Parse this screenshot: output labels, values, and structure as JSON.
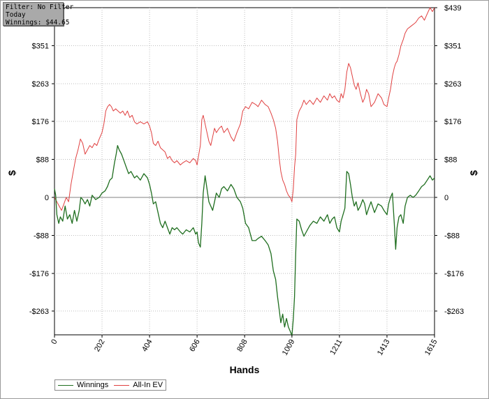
{
  "filter_box": {
    "line1": "Filter: No Filter",
    "line2": "Today",
    "line3": "Winnings: $44.65"
  },
  "chart_data": {
    "type": "line",
    "xlabel": "Hands",
    "ylabel": "$",
    "xlim": [
      0,
      1615
    ],
    "ylim": [
      -318,
      439
    ],
    "x_ticks": [
      0,
      202,
      404,
      606,
      808,
      1009,
      1211,
      1413,
      1615
    ],
    "y_ticks": [
      439,
      351,
      263,
      176,
      88,
      0,
      -88,
      -176,
      -263
    ],
    "y_tick_labels": [
      "$439",
      "$351",
      "$263",
      "$176",
      "$88",
      "0",
      "-$88",
      "-$176",
      "-$263"
    ],
    "grid": true,
    "legend_position": "bottom-left",
    "series": [
      {
        "name": "Winnings",
        "color": "#1f6e1f",
        "points": [
          [
            0,
            20
          ],
          [
            5,
            5
          ],
          [
            10,
            -40
          ],
          [
            18,
            -60
          ],
          [
            25,
            -45
          ],
          [
            35,
            -55
          ],
          [
            45,
            -20
          ],
          [
            55,
            -50
          ],
          [
            65,
            -40
          ],
          [
            75,
            -60
          ],
          [
            85,
            -30
          ],
          [
            95,
            -55
          ],
          [
            105,
            -30
          ],
          [
            112,
            0
          ],
          [
            120,
            -5
          ],
          [
            130,
            -15
          ],
          [
            140,
            -5
          ],
          [
            150,
            -20
          ],
          [
            160,
            5
          ],
          [
            175,
            -5
          ],
          [
            190,
            0
          ],
          [
            202,
            10
          ],
          [
            215,
            15
          ],
          [
            225,
            25
          ],
          [
            235,
            40
          ],
          [
            245,
            45
          ],
          [
            255,
            80
          ],
          [
            262,
            100
          ],
          [
            268,
            120
          ],
          [
            275,
            110
          ],
          [
            285,
            100
          ],
          [
            295,
            85
          ],
          [
            305,
            70
          ],
          [
            315,
            55
          ],
          [
            325,
            60
          ],
          [
            340,
            45
          ],
          [
            350,
            50
          ],
          [
            365,
            40
          ],
          [
            380,
            55
          ],
          [
            395,
            45
          ],
          [
            404,
            30
          ],
          [
            412,
            10
          ],
          [
            420,
            -15
          ],
          [
            430,
            -10
          ],
          [
            440,
            -35
          ],
          [
            450,
            -60
          ],
          [
            460,
            -70
          ],
          [
            470,
            -55
          ],
          [
            480,
            -70
          ],
          [
            490,
            -85
          ],
          [
            500,
            -70
          ],
          [
            510,
            -75
          ],
          [
            520,
            -70
          ],
          [
            535,
            -80
          ],
          [
            545,
            -85
          ],
          [
            560,
            -75
          ],
          [
            575,
            -80
          ],
          [
            590,
            -70
          ],
          [
            600,
            -85
          ],
          [
            606,
            -80
          ],
          [
            612,
            -105
          ],
          [
            620,
            -115
          ],
          [
            626,
            -60
          ],
          [
            632,
            10
          ],
          [
            640,
            50
          ],
          [
            648,
            20
          ],
          [
            656,
            -10
          ],
          [
            664,
            -20
          ],
          [
            672,
            -30
          ],
          [
            680,
            -10
          ],
          [
            688,
            10
          ],
          [
            700,
            0
          ],
          [
            710,
            20
          ],
          [
            720,
            25
          ],
          [
            735,
            15
          ],
          [
            750,
            30
          ],
          [
            762,
            20
          ],
          [
            775,
            0
          ],
          [
            790,
            -10
          ],
          [
            800,
            -25
          ],
          [
            812,
            -60
          ],
          [
            825,
            -70
          ],
          [
            840,
            -100
          ],
          [
            855,
            -100
          ],
          [
            865,
            -95
          ],
          [
            880,
            -90
          ],
          [
            895,
            -100
          ],
          [
            908,
            -110
          ],
          [
            920,
            -130
          ],
          [
            930,
            -170
          ],
          [
            940,
            -190
          ],
          [
            948,
            -230
          ],
          [
            955,
            -260
          ],
          [
            962,
            -290
          ],
          [
            970,
            -270
          ],
          [
            978,
            -300
          ],
          [
            986,
            -280
          ],
          [
            994,
            -300
          ],
          [
            1002,
            -310
          ],
          [
            1009,
            -320
          ],
          [
            1015,
            -280
          ],
          [
            1020,
            -230
          ],
          [
            1025,
            -130
          ],
          [
            1030,
            -50
          ],
          [
            1040,
            -55
          ],
          [
            1050,
            -75
          ],
          [
            1060,
            -90
          ],
          [
            1070,
            -80
          ],
          [
            1085,
            -65
          ],
          [
            1100,
            -55
          ],
          [
            1115,
            -60
          ],
          [
            1130,
            -45
          ],
          [
            1145,
            -55
          ],
          [
            1160,
            -40
          ],
          [
            1170,
            -60
          ],
          [
            1180,
            -50
          ],
          [
            1190,
            -45
          ],
          [
            1200,
            -70
          ],
          [
            1211,
            -80
          ],
          [
            1218,
            -55
          ],
          [
            1226,
            -40
          ],
          [
            1234,
            -25
          ],
          [
            1242,
            60
          ],
          [
            1250,
            55
          ],
          [
            1258,
            30
          ],
          [
            1266,
            0
          ],
          [
            1274,
            -20
          ],
          [
            1282,
            -10
          ],
          [
            1290,
            -30
          ],
          [
            1300,
            -20
          ],
          [
            1310,
            -5
          ],
          [
            1318,
            -15
          ],
          [
            1326,
            -40
          ],
          [
            1335,
            -25
          ],
          [
            1345,
            -10
          ],
          [
            1360,
            -35
          ],
          [
            1375,
            -15
          ],
          [
            1390,
            -20
          ],
          [
            1400,
            -30
          ],
          [
            1413,
            -40
          ],
          [
            1420,
            -15
          ],
          [
            1428,
            0
          ],
          [
            1436,
            10
          ],
          [
            1444,
            -60
          ],
          [
            1450,
            -120
          ],
          [
            1456,
            -70
          ],
          [
            1464,
            -45
          ],
          [
            1472,
            -40
          ],
          [
            1482,
            -60
          ],
          [
            1490,
            -20
          ],
          [
            1500,
            0
          ],
          [
            1512,
            5
          ],
          [
            1524,
            0
          ],
          [
            1535,
            5
          ],
          [
            1548,
            15
          ],
          [
            1560,
            25
          ],
          [
            1572,
            30
          ],
          [
            1584,
            40
          ],
          [
            1596,
            50
          ],
          [
            1606,
            40
          ],
          [
            1615,
            45
          ]
        ]
      },
      {
        "name": "All-In EV",
        "color": "#e04040",
        "points": [
          [
            0,
            0
          ],
          [
            10,
            -10
          ],
          [
            20,
            -20
          ],
          [
            30,
            -30
          ],
          [
            40,
            -15
          ],
          [
            50,
            0
          ],
          [
            60,
            -10
          ],
          [
            70,
            30
          ],
          [
            80,
            60
          ],
          [
            90,
            90
          ],
          [
            100,
            110
          ],
          [
            110,
            135
          ],
          [
            120,
            125
          ],
          [
            130,
            100
          ],
          [
            140,
            110
          ],
          [
            150,
            120
          ],
          [
            160,
            115
          ],
          [
            170,
            125
          ],
          [
            180,
            120
          ],
          [
            190,
            135
          ],
          [
            202,
            150
          ],
          [
            210,
            170
          ],
          [
            218,
            200
          ],
          [
            226,
            210
          ],
          [
            234,
            215
          ],
          [
            242,
            210
          ],
          [
            250,
            200
          ],
          [
            260,
            205
          ],
          [
            270,
            200
          ],
          [
            280,
            195
          ],
          [
            290,
            200
          ],
          [
            300,
            190
          ],
          [
            310,
            200
          ],
          [
            320,
            185
          ],
          [
            330,
            190
          ],
          [
            340,
            175
          ],
          [
            350,
            170
          ],
          [
            365,
            175
          ],
          [
            380,
            170
          ],
          [
            395,
            175
          ],
          [
            404,
            165
          ],
          [
            412,
            150
          ],
          [
            420,
            125
          ],
          [
            430,
            120
          ],
          [
            440,
            130
          ],
          [
            450,
            115
          ],
          [
            460,
            110
          ],
          [
            470,
            105
          ],
          [
            480,
            90
          ],
          [
            490,
            95
          ],
          [
            500,
            85
          ],
          [
            510,
            80
          ],
          [
            520,
            85
          ],
          [
            535,
            75
          ],
          [
            545,
            80
          ],
          [
            560,
            85
          ],
          [
            575,
            80
          ],
          [
            590,
            90
          ],
          [
            600,
            85
          ],
          [
            606,
            75
          ],
          [
            612,
            95
          ],
          [
            620,
            120
          ],
          [
            626,
            180
          ],
          [
            632,
            190
          ],
          [
            640,
            170
          ],
          [
            648,
            150
          ],
          [
            656,
            130
          ],
          [
            664,
            120
          ],
          [
            672,
            140
          ],
          [
            680,
            160
          ],
          [
            688,
            150
          ],
          [
            700,
            160
          ],
          [
            710,
            165
          ],
          [
            720,
            150
          ],
          [
            735,
            160
          ],
          [
            750,
            140
          ],
          [
            762,
            130
          ],
          [
            775,
            150
          ],
          [
            790,
            170
          ],
          [
            800,
            200
          ],
          [
            812,
            210
          ],
          [
            825,
            205
          ],
          [
            840,
            220
          ],
          [
            855,
            215
          ],
          [
            865,
            210
          ],
          [
            880,
            225
          ],
          [
            895,
            215
          ],
          [
            908,
            210
          ],
          [
            920,
            195
          ],
          [
            930,
            180
          ],
          [
            940,
            160
          ],
          [
            948,
            130
          ],
          [
            955,
            90
          ],
          [
            962,
            60
          ],
          [
            970,
            40
          ],
          [
            978,
            30
          ],
          [
            986,
            15
          ],
          [
            994,
            5
          ],
          [
            1002,
            0
          ],
          [
            1009,
            -10
          ],
          [
            1015,
            20
          ],
          [
            1020,
            70
          ],
          [
            1025,
            100
          ],
          [
            1030,
            180
          ],
          [
            1040,
            200
          ],
          [
            1050,
            210
          ],
          [
            1060,
            225
          ],
          [
            1070,
            215
          ],
          [
            1085,
            225
          ],
          [
            1100,
            215
          ],
          [
            1115,
            230
          ],
          [
            1130,
            220
          ],
          [
            1145,
            235
          ],
          [
            1160,
            225
          ],
          [
            1170,
            240
          ],
          [
            1180,
            230
          ],
          [
            1190,
            235
          ],
          [
            1200,
            225
          ],
          [
            1211,
            220
          ],
          [
            1218,
            240
          ],
          [
            1226,
            230
          ],
          [
            1234,
            250
          ],
          [
            1242,
            290
          ],
          [
            1250,
            310
          ],
          [
            1258,
            300
          ],
          [
            1266,
            280
          ],
          [
            1274,
            260
          ],
          [
            1282,
            250
          ],
          [
            1290,
            265
          ],
          [
            1300,
            240
          ],
          [
            1310,
            220
          ],
          [
            1318,
            230
          ],
          [
            1326,
            250
          ],
          [
            1335,
            240
          ],
          [
            1345,
            210
          ],
          [
            1360,
            220
          ],
          [
            1375,
            240
          ],
          [
            1390,
            230
          ],
          [
            1400,
            215
          ],
          [
            1413,
            210
          ],
          [
            1420,
            230
          ],
          [
            1428,
            250
          ],
          [
            1436,
            280
          ],
          [
            1444,
            300
          ],
          [
            1450,
            310
          ],
          [
            1456,
            315
          ],
          [
            1464,
            330
          ],
          [
            1472,
            350
          ],
          [
            1482,
            365
          ],
          [
            1490,
            380
          ],
          [
            1500,
            390
          ],
          [
            1512,
            395
          ],
          [
            1524,
            400
          ],
          [
            1535,
            405
          ],
          [
            1548,
            415
          ],
          [
            1560,
            420
          ],
          [
            1572,
            410
          ],
          [
            1584,
            425
          ],
          [
            1596,
            439
          ],
          [
            1606,
            430
          ],
          [
            1615,
            439
          ]
        ]
      }
    ]
  }
}
